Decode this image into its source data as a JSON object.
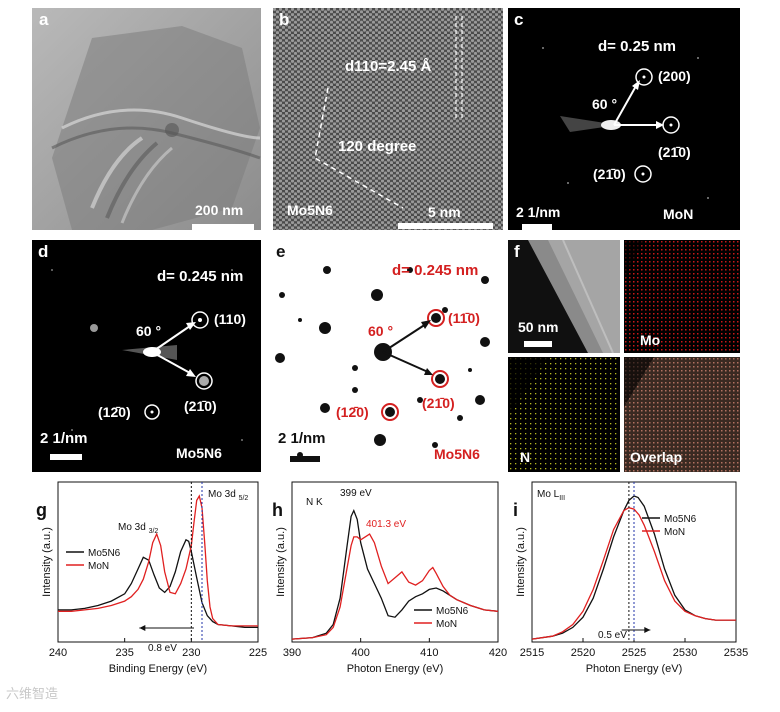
{
  "panels": {
    "a": {
      "label": "a",
      "scale": "200 nm"
    },
    "b": {
      "label": "b",
      "d_spacing": "d110=2.45 Å",
      "angle": "120 degree",
      "material": "Mo5N6",
      "scale": "5 nm"
    },
    "c": {
      "label": "c",
      "d": "d= 0.25 nm",
      "angle": "60 °",
      "spots": [
        "(200)",
        "(21̄0)",
        "(21̄0)"
      ],
      "scale": "2 1/nm",
      "material": "MoN"
    },
    "d": {
      "label": "d",
      "d": "d= 0.245 nm",
      "angle": "60 °",
      "spots": [
        "(110)",
        "(21̄0)",
        "(12̄0)"
      ],
      "scale": "2 1/nm",
      "material": "Mo5N6"
    },
    "e": {
      "label": "e",
      "d": "d= 0.245 nm",
      "angle": "60 °",
      "spots": [
        "(11̄0)",
        "(21̄0)",
        "(12̄0)"
      ],
      "scale": "2 1/nm",
      "material": "Mo5N6"
    },
    "f": {
      "label": "f",
      "scale": "50 nm",
      "maps": [
        "Mo",
        "N",
        "Overlap"
      ]
    }
  },
  "chart_data": [
    {
      "type": "line",
      "panel": "g",
      "xlabel": "Binding Energy (eV)",
      "ylabel": "Intensity (a.u.)",
      "xlim": [
        240,
        225
      ],
      "x_reversed": true,
      "xticks": [
        240,
        235,
        230,
        225
      ],
      "annotations": [
        "Mo 3d 3/2",
        "Mo 3d 5/2",
        "0.8 eV"
      ],
      "series": [
        {
          "name": "Mo5N6",
          "color": "#111111",
          "x": [
            240,
            239,
            238,
            237,
            236,
            235,
            234.5,
            234,
            233.6,
            233.2,
            232.8,
            232.4,
            232,
            231.6,
            231.2,
            230.8,
            230.4,
            230.2,
            230,
            229.6,
            229.2,
            228.8,
            228.4,
            228,
            227,
            226,
            225
          ],
          "y": [
            0.22,
            0.22,
            0.23,
            0.25,
            0.28,
            0.33,
            0.4,
            0.5,
            0.58,
            0.56,
            0.46,
            0.37,
            0.34,
            0.38,
            0.48,
            0.62,
            0.7,
            0.69,
            0.62,
            0.44,
            0.27,
            0.18,
            0.14,
            0.12,
            0.11,
            0.1,
            0.1
          ]
        },
        {
          "name": "MoN",
          "color": "#e02020",
          "x": [
            240,
            239,
            238,
            237,
            236,
            235,
            234.5,
            234,
            233.6,
            233.2,
            232.9,
            232.6,
            232.3,
            232,
            231.6,
            231.2,
            230.8,
            230.4,
            230,
            229.8,
            229.6,
            229.4,
            229.2,
            229,
            228.8,
            228.6,
            228.4,
            228,
            227,
            226,
            225
          ],
          "y": [
            0.21,
            0.21,
            0.22,
            0.23,
            0.25,
            0.28,
            0.31,
            0.36,
            0.43,
            0.55,
            0.68,
            0.74,
            0.66,
            0.48,
            0.34,
            0.33,
            0.4,
            0.5,
            0.66,
            0.82,
            0.97,
            1.0,
            0.92,
            0.68,
            0.42,
            0.24,
            0.16,
            0.12,
            0.11,
            0.11,
            0.11
          ]
        }
      ]
    },
    {
      "type": "line",
      "panel": "h",
      "title": "N K",
      "xlabel": "Photon Energy (eV)",
      "ylabel": "Intensity (a.u.)",
      "xlim": [
        390,
        420
      ],
      "xticks": [
        390,
        400,
        410,
        420
      ],
      "annotations": [
        "399 eV",
        "401.3 eV"
      ],
      "series": [
        {
          "name": "Mo5N6",
          "color": "#111111",
          "x": [
            390,
            393,
            395,
            396,
            397,
            398,
            398.6,
            399,
            399.5,
            400,
            401,
            402,
            403,
            404,
            405,
            406,
            407,
            408,
            409,
            410,
            411,
            412,
            413,
            414,
            416,
            418,
            420
          ],
          "y": [
            0.02,
            0.03,
            0.06,
            0.12,
            0.3,
            0.65,
            0.86,
            0.9,
            0.84,
            0.68,
            0.5,
            0.4,
            0.3,
            0.18,
            0.17,
            0.22,
            0.28,
            0.31,
            0.33,
            0.36,
            0.37,
            0.35,
            0.32,
            0.29,
            0.25,
            0.22,
            0.21
          ]
        },
        {
          "name": "MoN",
          "color": "#e02020",
          "x": [
            390,
            393,
            395,
            396,
            397,
            398,
            398.6,
            399,
            399.5,
            400,
            401,
            401.3,
            402,
            403,
            404,
            405,
            406,
            407,
            408,
            409,
            410,
            410.5,
            411,
            412,
            413,
            414,
            416,
            418,
            420
          ],
          "y": [
            0.02,
            0.03,
            0.05,
            0.1,
            0.24,
            0.5,
            0.66,
            0.72,
            0.72,
            0.7,
            0.73,
            0.74,
            0.68,
            0.52,
            0.4,
            0.44,
            0.48,
            0.41,
            0.39,
            0.42,
            0.49,
            0.51,
            0.47,
            0.38,
            0.32,
            0.29,
            0.25,
            0.22,
            0.21
          ]
        }
      ]
    },
    {
      "type": "line",
      "panel": "i",
      "title": "Mo LIII",
      "xlabel": "Photon Energy (eV)",
      "ylabel": "Intensity (a.u.)",
      "xlim": [
        2515,
        2535
      ],
      "xticks": [
        2515,
        2520,
        2525,
        2530,
        2535
      ],
      "annotations": [
        "0.5 eV"
      ],
      "series": [
        {
          "name": "Mo5N6",
          "color": "#111111",
          "x": [
            2515,
            2517,
            2518,
            2519,
            2520,
            2521,
            2522,
            2523,
            2524,
            2524.5,
            2525,
            2525.4,
            2526,
            2527,
            2528,
            2529,
            2530,
            2531,
            2532,
            2533,
            2535
          ],
          "y": [
            0.02,
            0.04,
            0.06,
            0.1,
            0.17,
            0.3,
            0.5,
            0.72,
            0.9,
            0.97,
            1.0,
            0.99,
            0.93,
            0.74,
            0.5,
            0.32,
            0.22,
            0.18,
            0.16,
            0.15,
            0.15
          ]
        },
        {
          "name": "MoN",
          "color": "#e02020",
          "x": [
            2515,
            2517,
            2518,
            2519,
            2520,
            2521,
            2522,
            2523,
            2524,
            2524.5,
            2525,
            2525.5,
            2526,
            2527,
            2528,
            2529,
            2530,
            2531,
            2532,
            2533,
            2535
          ],
          "y": [
            0.02,
            0.04,
            0.07,
            0.12,
            0.21,
            0.36,
            0.56,
            0.77,
            0.9,
            0.92,
            0.91,
            0.87,
            0.8,
            0.62,
            0.42,
            0.28,
            0.21,
            0.18,
            0.16,
            0.15,
            0.15
          ]
        }
      ]
    }
  ],
  "labels": {
    "g": "g",
    "h": "h",
    "i": "i",
    "mo3d32": "Mo 3d",
    "mo3d32_sub": "3/2",
    "mo3d52": "Mo 3d",
    "mo3d52_sub": "5/2",
    "shift_g": "0.8 eV",
    "nk": "N K",
    "e399": "399 eV",
    "e401": "401.3 eV",
    "molIII": "Mo L",
    "molIII_sub": "III",
    "shift_i": "0.5 eV"
  },
  "watermark": "六维智造",
  "colors": {
    "mo5n6": "#111111",
    "mon": "#e02020",
    "panel_bg": "#000000"
  }
}
